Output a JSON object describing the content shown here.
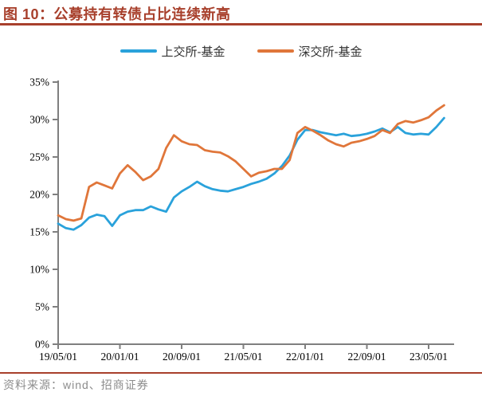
{
  "figure": {
    "title": "图 10：公募持有转债占比连续新高",
    "source_note": "资料来源：wind、招商证券"
  },
  "colors": {
    "title_red": "#A8402C",
    "rule_red": "#A8402C",
    "axis_gray": "#7F7F7F",
    "tick_label_black": "#000000",
    "source_gray": "#8C8C8C",
    "series_blue": "#2AA2DB",
    "series_orange": "#E0763A"
  },
  "chart_data": {
    "type": "line",
    "title": "公募持有转债占比连续新高",
    "xlabel": "",
    "ylabel": "",
    "ylim": [
      0,
      35
    ],
    "y_tick_step": 5,
    "y_tick_suffix": "%",
    "grid": false,
    "legend_position": "top-center",
    "x": [
      "19/05",
      "19/06",
      "19/07",
      "19/08",
      "19/09",
      "19/10",
      "19/11",
      "19/12",
      "20/01",
      "20/02",
      "20/03",
      "20/04",
      "20/05",
      "20/06",
      "20/07",
      "20/08",
      "20/09",
      "20/10",
      "20/11",
      "20/12",
      "21/01",
      "21/02",
      "21/03",
      "21/04",
      "21/05",
      "21/06",
      "21/07",
      "21/08",
      "21/09",
      "21/10",
      "21/11",
      "21/12",
      "22/01",
      "22/02",
      "22/03",
      "22/04",
      "22/05",
      "22/06",
      "22/07",
      "22/08",
      "22/09",
      "22/10",
      "22/11",
      "22/12",
      "23/01",
      "23/02",
      "23/03",
      "23/04",
      "23/05",
      "23/06",
      "23/07"
    ],
    "x_tick_labels": [
      "19/05/01",
      "20/01/01",
      "20/09/01",
      "21/05/01",
      "22/01/01",
      "22/09/01",
      "23/05/01"
    ],
    "x_tick_indices": [
      0,
      8,
      16,
      24,
      32,
      40,
      48
    ],
    "series": [
      {
        "name": "上交所-基金",
        "color": "#2AA2DB",
        "values": [
          16.1,
          15.5,
          15.3,
          15.9,
          16.9,
          17.3,
          17.1,
          15.8,
          17.2,
          17.7,
          17.9,
          17.9,
          18.4,
          18.0,
          17.7,
          19.6,
          20.4,
          21.0,
          21.7,
          21.1,
          20.7,
          20.5,
          20.4,
          20.7,
          21.0,
          21.4,
          21.7,
          22.1,
          22.8,
          23.8,
          25.2,
          27.3,
          28.6,
          28.6,
          28.3,
          28.1,
          27.9,
          28.1,
          27.8,
          27.9,
          28.1,
          28.4,
          28.8,
          28.3,
          29.0,
          28.2,
          28.0,
          28.1,
          28.0,
          29.0,
          30.2
        ]
      },
      {
        "name": "深交所-基金",
        "color": "#E0763A",
        "values": [
          17.2,
          16.7,
          16.5,
          16.8,
          21.0,
          21.6,
          21.2,
          20.8,
          22.8,
          23.9,
          23.0,
          21.9,
          22.4,
          23.4,
          26.2,
          27.9,
          27.1,
          26.7,
          26.6,
          25.9,
          25.7,
          25.6,
          25.1,
          24.4,
          23.4,
          22.4,
          22.9,
          23.1,
          23.4,
          23.4,
          24.6,
          28.2,
          29.0,
          28.5,
          27.9,
          27.2,
          26.7,
          26.4,
          26.9,
          27.1,
          27.4,
          27.8,
          28.6,
          28.2,
          29.4,
          29.8,
          29.6,
          29.9,
          30.3,
          31.2,
          31.9
        ]
      }
    ]
  }
}
